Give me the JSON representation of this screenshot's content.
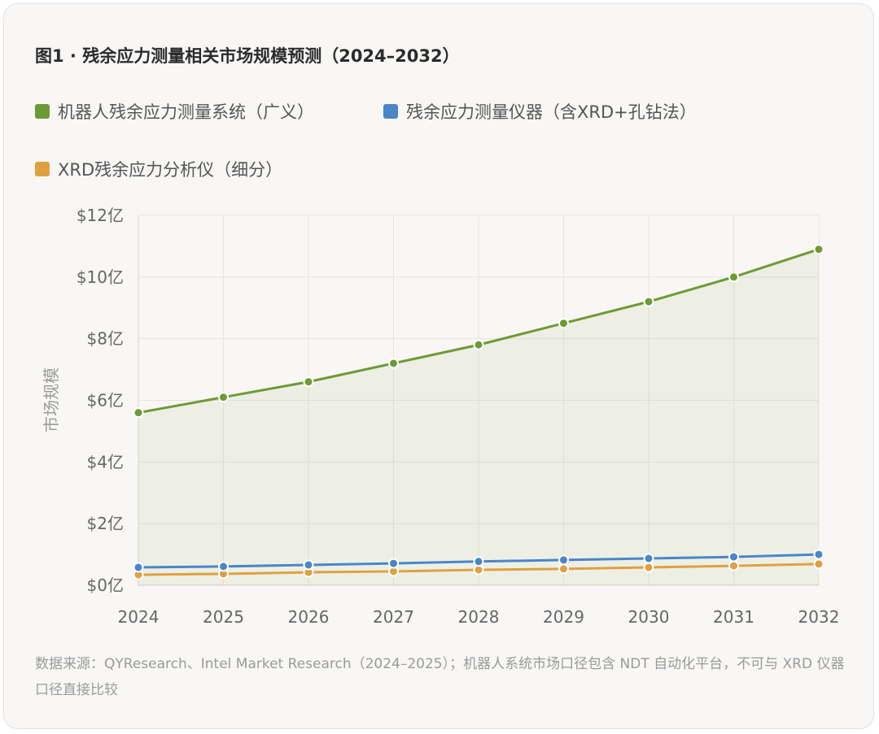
{
  "chart_data": {
    "type": "line",
    "title": "图1 · 残余应力测量相关市场规模预测（2024–2032）",
    "ylabel": "市场规模",
    "xlabel": "",
    "x": [
      "2024",
      "2025",
      "2026",
      "2027",
      "2028",
      "2029",
      "2030",
      "2031",
      "2032"
    ],
    "ylim": [
      0,
      12
    ],
    "yticks": [
      0,
      2,
      4,
      6,
      8,
      10,
      12
    ],
    "ytick_labels": [
      "$0亿",
      "$2亿",
      "$4亿",
      "$6亿",
      "$8亿",
      "$10亿",
      "$12亿"
    ],
    "grid": true,
    "legend_placement": "top-left",
    "series": [
      {
        "name": "机器人残余应力测量系统（广义）",
        "color": "#6e9a35",
        "filled": true,
        "values": [
          5.6,
          6.1,
          6.6,
          7.2,
          7.8,
          8.5,
          9.2,
          10.0,
          10.9
        ]
      },
      {
        "name": "残余应力测量仪器（含XRD+孔钻法）",
        "color": "#4a86c8",
        "filled": false,
        "values": [
          0.58,
          0.61,
          0.66,
          0.71,
          0.77,
          0.82,
          0.87,
          0.92,
          1.0
        ]
      },
      {
        "name": "XRD残余应力分析仪（细分）",
        "color": "#e0a040",
        "filled": false,
        "values": [
          0.34,
          0.37,
          0.42,
          0.45,
          0.5,
          0.53,
          0.58,
          0.63,
          0.69
        ]
      }
    ],
    "note": "数据来源：QYResearch、Intel Market Research（2024–2025）；机器人系统市场口径包含 NDT 自动化平台，不可与 XRD 仪器口径直接比较"
  }
}
